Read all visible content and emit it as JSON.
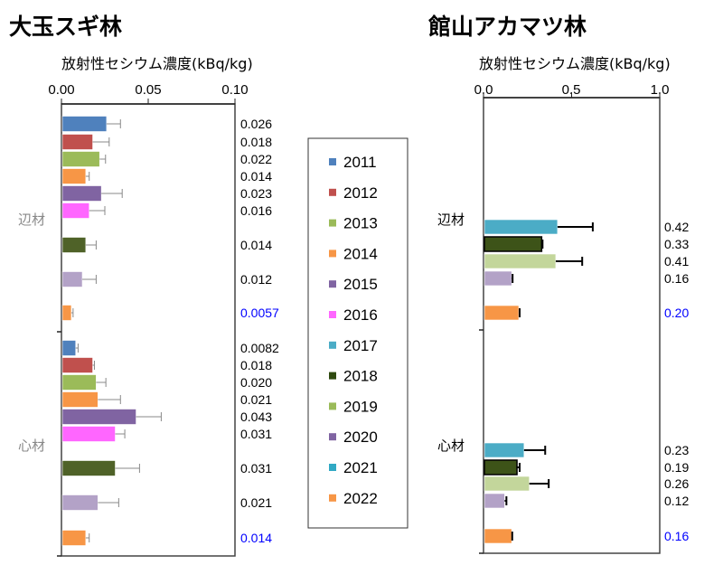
{
  "legend": {
    "placement": "center",
    "items": [
      {
        "year": "2011",
        "color": "#4f81bd"
      },
      {
        "year": "2012",
        "color": "#c0504d"
      },
      {
        "year": "2013",
        "color": "#9bbb59"
      },
      {
        "year": "2014",
        "color": "#f79646"
      },
      {
        "year": "2015",
        "color": "#8064a2"
      },
      {
        "year": "2016",
        "color": "#ff66ff"
      },
      {
        "year": "2017",
        "color": "#4bacc6"
      },
      {
        "year": "2018",
        "color": "#2f4a10"
      },
      {
        "year": "2019",
        "color": "#9bbb59"
      },
      {
        "year": "2020",
        "color": "#8064a2"
      },
      {
        "year": "2021",
        "color": "#31a9c4"
      },
      {
        "year": "2022",
        "color": "#f79646"
      }
    ]
  },
  "chart_data": [
    {
      "type": "bar",
      "orientation": "horizontal",
      "title": "大玉スギ林",
      "xlabel": "放射性セシウム濃度(kBq/kg)",
      "xlim": [
        0,
        0.1
      ],
      "xticks": [
        "0.00",
        "0.05",
        "0.10"
      ],
      "xtick_values": [
        0,
        0.05,
        0.1
      ],
      "error_bar_color": "#888888",
      "groups": [
        {
          "name": "辺材",
          "bars": [
            {
              "year": "2011",
              "value": 0.026,
              "error": 0.008,
              "label": "0.026",
              "color": "#4f81bd"
            },
            {
              "year": "2012",
              "value": 0.018,
              "error": 0.0095,
              "label": "0.018",
              "color": "#c0504d"
            },
            {
              "year": "2013",
              "value": 0.022,
              "error": 0.0034,
              "label": "0.022",
              "color": "#9bbb59"
            },
            {
              "year": "2014",
              "value": 0.014,
              "error": 0.002,
              "label": "0.014",
              "color": "#f79646"
            },
            {
              "year": "2015",
              "value": 0.023,
              "error": 0.012,
              "label": "0.023",
              "color": "#8064a2"
            },
            {
              "year": "2016",
              "value": 0.016,
              "error": 0.009,
              "label": "0.016",
              "color": "#ff66ff"
            },
            {
              "year": "2018",
              "value": 0.014,
              "error": 0.006,
              "label": "0.014",
              "color": "#4f6228"
            },
            {
              "year": "2020",
              "value": 0.012,
              "error": 0.008,
              "label": "0.012",
              "color": "#b3a2c7"
            },
            {
              "year": "2022",
              "value": 0.0057,
              "error": 0.001,
              "label": "0.0057",
              "color": "#f79646",
              "label_color": "#0000ff"
            }
          ]
        },
        {
          "name": "心材",
          "bars": [
            {
              "year": "2011",
              "value": 0.0082,
              "error": 0.0014,
              "label": "0.0082",
              "color": "#4f81bd"
            },
            {
              "year": "2012",
              "value": 0.018,
              "error": 0.001,
              "label": "0.018",
              "color": "#c0504d"
            },
            {
              "year": "2013",
              "value": 0.02,
              "error": 0.0056,
              "label": "0.020",
              "color": "#9bbb59"
            },
            {
              "year": "2014",
              "value": 0.021,
              "error": 0.013,
              "label": "0.021",
              "color": "#f79646"
            },
            {
              "year": "2015",
              "value": 0.043,
              "error": 0.0145,
              "label": "0.043",
              "color": "#8064a2"
            },
            {
              "year": "2016",
              "value": 0.031,
              "error": 0.0055,
              "label": "0.031",
              "color": "#ff66ff"
            },
            {
              "year": "2018",
              "value": 0.031,
              "error": 0.014,
              "label": "0.031",
              "color": "#4f6228"
            },
            {
              "year": "2020",
              "value": 0.021,
              "error": 0.012,
              "label": "0.021",
              "color": "#b3a2c7"
            },
            {
              "year": "2022",
              "value": 0.014,
              "error": 0.002,
              "label": "0.014",
              "color": "#f79646",
              "label_color": "#0000ff"
            }
          ]
        }
      ]
    },
    {
      "type": "bar",
      "orientation": "horizontal",
      "title": "館山アカマツ林",
      "xlabel": "放射性セシウム濃度(kBq/kg)",
      "xlim": [
        0,
        1.0
      ],
      "xticks": [
        "0.0",
        "0.5",
        "1.0"
      ],
      "xtick_values": [
        0,
        0.5,
        1.0
      ],
      "error_bar_color": "#000000",
      "groups": [
        {
          "name": "辺材",
          "bars": [
            {
              "year": "2017",
              "value": 0.42,
              "error": 0.2,
              "label": "0.42",
              "color": "#4bacc6"
            },
            {
              "year": "2018",
              "value": 0.33,
              "error": 0.005,
              "label": "0.33",
              "color": "#3d5318"
            },
            {
              "year": "2019",
              "value": 0.41,
              "error": 0.15,
              "label": "0.41",
              "color": "#c3d69b"
            },
            {
              "year": "2020",
              "value": 0.16,
              "error": 0.005,
              "label": "0.16",
              "color": "#b3a2c7"
            },
            {
              "year": "2022",
              "value": 0.2,
              "error": 0.005,
              "label": "0.20",
              "color": "#f79646",
              "label_color": "#0000ff"
            }
          ]
        },
        {
          "name": "心材",
          "bars": [
            {
              "year": "2017",
              "value": 0.23,
              "error": 0.12,
              "label": "0.23",
              "color": "#4bacc6"
            },
            {
              "year": "2018",
              "value": 0.19,
              "error": 0.015,
              "label": "0.19",
              "color": "#3d5318"
            },
            {
              "year": "2019",
              "value": 0.26,
              "error": 0.11,
              "label": "0.26",
              "color": "#c3d69b"
            },
            {
              "year": "2020",
              "value": 0.12,
              "error": 0.01,
              "label": "0.12",
              "color": "#b3a2c7"
            },
            {
              "year": "2022",
              "value": 0.16,
              "error": 0.003,
              "label": "0.16",
              "color": "#f79646",
              "label_color": "#0000ff"
            }
          ]
        }
      ]
    }
  ]
}
